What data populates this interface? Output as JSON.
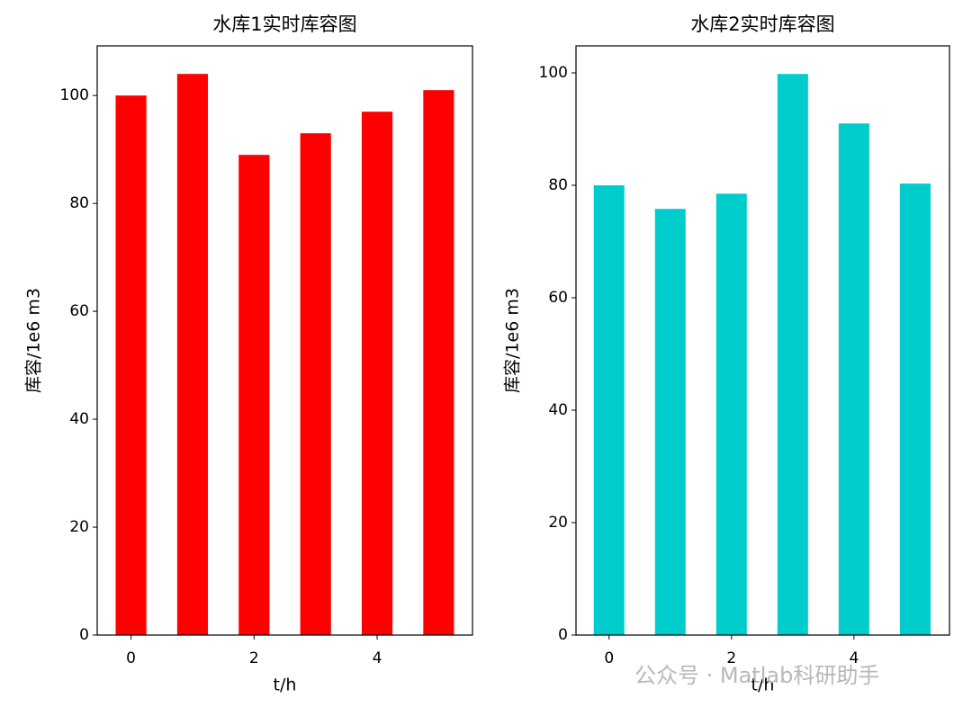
{
  "chart_data": [
    {
      "type": "bar",
      "title": "水库1实时库容图",
      "x_label": "t/h",
      "y_label": "库容/1e6 m3",
      "x": [
        0,
        1,
        2,
        3,
        4,
        5
      ],
      "values": [
        100,
        104,
        89,
        93,
        97,
        101
      ],
      "color": "#ff0000",
      "xlim": [
        -0.55,
        5.55
      ],
      "xticks": [
        0,
        2,
        4
      ],
      "ylim": [
        0,
        109.2
      ],
      "yticks": [
        0,
        20,
        40,
        60,
        80,
        100
      ],
      "bar_width": 0.5
    },
    {
      "type": "bar",
      "title": "水库2实时库容图",
      "x_label": "t/h",
      "y_label": "库容/1e6 m3",
      "x": [
        0,
        1,
        2,
        3,
        4,
        5
      ],
      "values": [
        80,
        75.8,
        78.5,
        99.8,
        91,
        80.3
      ],
      "color": "#00cccc",
      "xlim": [
        -0.54,
        5.56
      ],
      "xticks": [
        0,
        2,
        4
      ],
      "ylim": [
        0,
        104.8
      ],
      "yticks": [
        0,
        20,
        40,
        60,
        80,
        100
      ],
      "bar_width": 0.5
    }
  ],
  "watermark": "公众号 · Matlab科研助手"
}
